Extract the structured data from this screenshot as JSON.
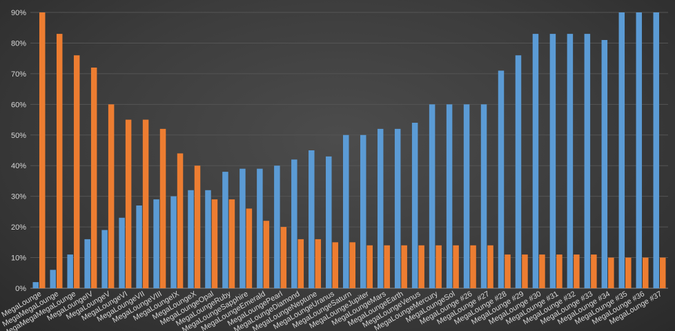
{
  "chart_data": {
    "type": "bar",
    "title": "",
    "xlabel": "",
    "ylabel": "",
    "ylim": [
      0,
      90
    ],
    "yticks": [
      "0%",
      "10%",
      "20%",
      "30%",
      "40%",
      "50%",
      "60%",
      "70%",
      "80%",
      "90%"
    ],
    "grid": true,
    "legend": "none",
    "categories": [
      "MegaLounge",
      "MegaMegaLounge",
      "MegaMegaMegaLounge",
      "MegaLoungeIV",
      "MegaLoungeV",
      "MegaLoungeVI",
      "MegaLoungeVII",
      "MegaLoungeVIII",
      "MegaLoungeIX",
      "MegaLoungeX",
      "MegaLoungeOpal",
      "MegaLoungeRuby",
      "MegaLoungeSapphire",
      "MegaLoungeEmerald",
      "MegaLoungePearl",
      "MegaLoungeDiamond",
      "MegaLoungeNeptune",
      "MegaLoungeUranus",
      "MegaLoungeSaturn",
      "MegaLoungeJupiter",
      "MegaLoungeMars",
      "MegaLoungeEarth",
      "MegaLoungeVenus",
      "MegaLoungeMercury",
      "MegaLoungeSol",
      "MegaLounge #26",
      "MegaLounge #27",
      "MegaLounge #28",
      "MegaLounge #29",
      "MegaLounge #30",
      "MegaLounge #31",
      "MegaLounge #32",
      "MegaLounge #33",
      "MegaLounge #34",
      "MegaLounge #35",
      "MegaLounge #36",
      "MegaLounge #37"
    ],
    "series": [
      {
        "color": "#5b9bd5",
        "values": [
          2,
          6,
          11,
          16,
          19,
          23,
          27,
          29,
          30,
          32,
          32,
          38,
          39,
          39,
          40,
          42,
          45,
          43,
          50,
          50,
          52,
          52,
          54,
          60,
          60,
          60,
          60,
          71,
          76,
          83,
          83,
          83,
          83,
          81,
          90,
          90,
          90
        ]
      },
      {
        "color": "#ed7d31",
        "values": [
          90,
          83,
          76,
          72,
          60,
          55,
          55,
          52,
          44,
          40,
          29,
          29,
          26,
          22,
          20,
          16,
          16,
          15,
          15,
          14,
          14,
          14,
          14,
          14,
          14,
          14,
          14,
          11,
          11,
          11,
          11,
          11,
          11,
          10,
          10,
          10,
          10
        ]
      }
    ]
  }
}
